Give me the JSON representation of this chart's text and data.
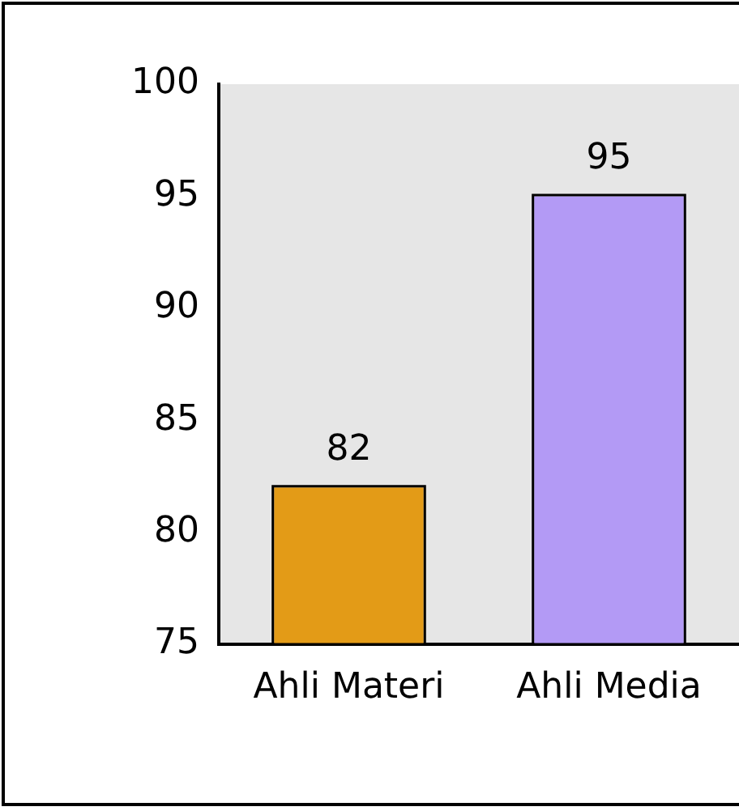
{
  "chart_data": {
    "type": "bar",
    "categories": [
      "Ahli Materi",
      "Ahli Media"
    ],
    "values": [
      82,
      95
    ],
    "colors": [
      "#e39b17",
      "#b39af5"
    ],
    "ylim": [
      75,
      100
    ],
    "yticks": [
      75,
      80,
      85,
      90,
      95,
      100
    ],
    "data_labels": true
  }
}
